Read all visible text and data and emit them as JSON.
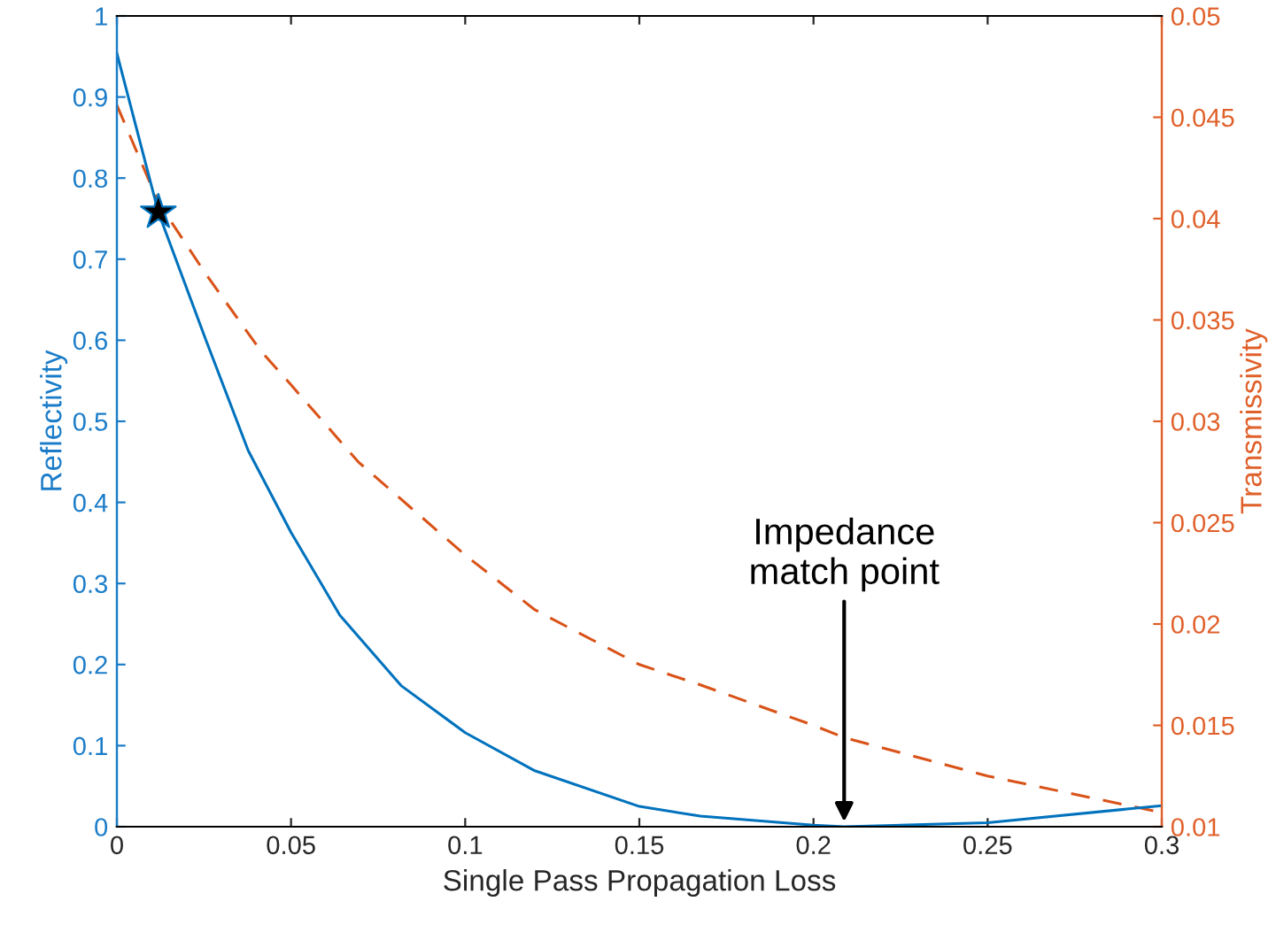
{
  "chart_data": {
    "type": "line",
    "xlabel": "Single Pass Propagation Loss",
    "ylabel": "Reflectivity",
    "y2label": "Transmissivity",
    "xlim": [
      0,
      0.3
    ],
    "xticks": [
      0,
      0.05,
      0.1,
      0.15,
      0.2,
      0.25,
      0.3
    ],
    "ylim": [
      0,
      1
    ],
    "yticks": [
      0,
      0.1,
      0.2,
      0.3,
      0.4,
      0.5,
      0.6,
      0.7,
      0.8,
      0.9,
      1
    ],
    "y2lim": [
      0.01,
      0.05
    ],
    "y2ticks": [
      0.01,
      0.015,
      0.02,
      0.025,
      0.03,
      0.035,
      0.04,
      0.045,
      0.05
    ],
    "grid": false,
    "legend": false,
    "series": [
      {
        "color": "#0072bd",
        "line_style": "solid",
        "x": [
          0,
          0.0119,
          0.0254,
          0.0377,
          0.05,
          0.064,
          0.0816,
          0.1,
          0.12,
          0.15,
          0.1675,
          0.2,
          0.2088,
          0.25,
          0.3
        ],
        "values": [
          0.954,
          0.758,
          0.602,
          0.464,
          0.363,
          0.261,
          0.174,
          0.116,
          0.069,
          0.025,
          0.013,
          0.002,
          0,
          0.005,
          0.026
        ]
      },
      {
        "color": "#d95319",
        "line_style": "dashed",
        "axis": "y2",
        "x": [
          0,
          0.0119,
          0.0254,
          0.0412,
          0.05,
          0.0693,
          0.1,
          0.12,
          0.15,
          0.1675,
          0.2,
          0.2088,
          0.25,
          0.3
        ],
        "values": [
          0.0456,
          0.0408,
          0.0373,
          0.0335,
          0.0318,
          0.028,
          0.0234,
          0.0207,
          0.018,
          0.017,
          0.015,
          0.0144,
          0.0125,
          0.0107
        ]
      },
      {
        "type": "scatter",
        "marker": "star",
        "color": "#000000",
        "x": [
          0.0119
        ],
        "values": [
          0.758
        ]
      }
    ],
    "annotations": [
      {
        "text": "Impedance\nmatch point",
        "x": 0.2088,
        "y": 0
      }
    ]
  }
}
